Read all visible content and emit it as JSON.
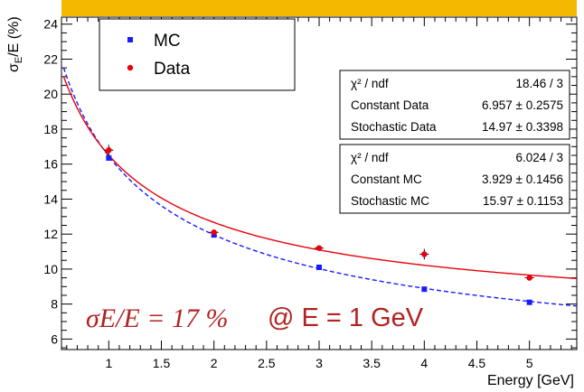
{
  "colors": {
    "banner": "#f5b800",
    "mc": "#1a1aff",
    "data": "#e8000b",
    "annotation": "#b22222"
  },
  "chart_data": {
    "type": "scatter",
    "xlabel": "Energy [GeV]",
    "ylabel": "σE/E (%)",
    "xlim": [
      0.55,
      5.45
    ],
    "ylim": [
      5.4,
      24.4
    ],
    "xticks": [
      "1",
      "1.5",
      "2",
      "2.5",
      "3",
      "3.5",
      "4",
      "4.5",
      "5"
    ],
    "yticks": [
      "6",
      "8",
      "10",
      "12",
      "14",
      "16",
      "18",
      "20",
      "22",
      "24"
    ],
    "grid": false,
    "legend_position": "top-left",
    "series": [
      {
        "name": "MC",
        "color": "#1a1aff",
        "marker": "square",
        "x": [
          1,
          2,
          3,
          4,
          5
        ],
        "y": [
          16.35,
          11.95,
          10.1,
          8.85,
          8.1
        ],
        "fit": {
          "type": "dashed",
          "constant": 3.929,
          "stochastic": 15.97
        }
      },
      {
        "name": "Data",
        "color": "#e8000b",
        "marker": "dot",
        "x": [
          1,
          2,
          3,
          4,
          5
        ],
        "y": [
          16.8,
          12.1,
          11.2,
          10.85,
          9.5
        ],
        "yerr": [
          0.3,
          0.15,
          0.15,
          0.3,
          0.12
        ],
        "fit": {
          "type": "solid",
          "constant": 6.957,
          "stochastic": 14.97
        }
      }
    ],
    "stat_boxes": [
      {
        "rows": [
          {
            "label": "χ² / ndf",
            "value": "18.46 / 3"
          },
          {
            "label": "Constant Data",
            "value": "6.957 ± 0.2575"
          },
          {
            "label": "Stochastic Data",
            "value": "14.97 ± 0.3398"
          }
        ]
      },
      {
        "rows": [
          {
            "label": "χ² / ndf",
            "value": "6.024 / 3"
          },
          {
            "label": "Constant MC",
            "value": "3.929 ± 0.1456"
          },
          {
            "label": "Stochastic MC",
            "value": "15.97 ± 0.1153"
          }
        ]
      }
    ],
    "annotation": {
      "formula": "σE/E = 17 %",
      "text": "@ E = 1 GeV"
    }
  }
}
